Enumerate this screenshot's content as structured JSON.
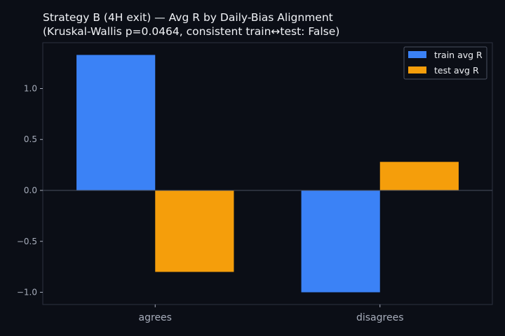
{
  "chart_data": {
    "type": "bar",
    "title": "Strategy B (4H exit) — Avg R by Daily-Bias Alignment",
    "subtitle": "(Kruskal-Wallis p=0.0464, consistent train↔test: False)",
    "categories": [
      "agrees",
      "disagrees"
    ],
    "series": [
      {
        "name": "train avg R",
        "color": "#3b82f6",
        "values": [
          1.33,
          -1.0
        ]
      },
      {
        "name": "test avg R",
        "color": "#f59e0b",
        "values": [
          -0.8,
          0.28
        ]
      }
    ],
    "yticks": [
      "1.0",
      "0.5",
      "0.0",
      "−0.5",
      "−1.0"
    ],
    "ytick_values": [
      1.0,
      0.5,
      0.0,
      -0.5,
      -1.0
    ],
    "ylim": [
      -1.12,
      1.45
    ],
    "xlabel": "",
    "ylabel": "",
    "grid": false,
    "legend_position": "top-right",
    "colors": {
      "background": "#0b0e16",
      "axes": "#2c3140",
      "zero_line": "#4a5060",
      "text": "#a7adbb"
    }
  }
}
